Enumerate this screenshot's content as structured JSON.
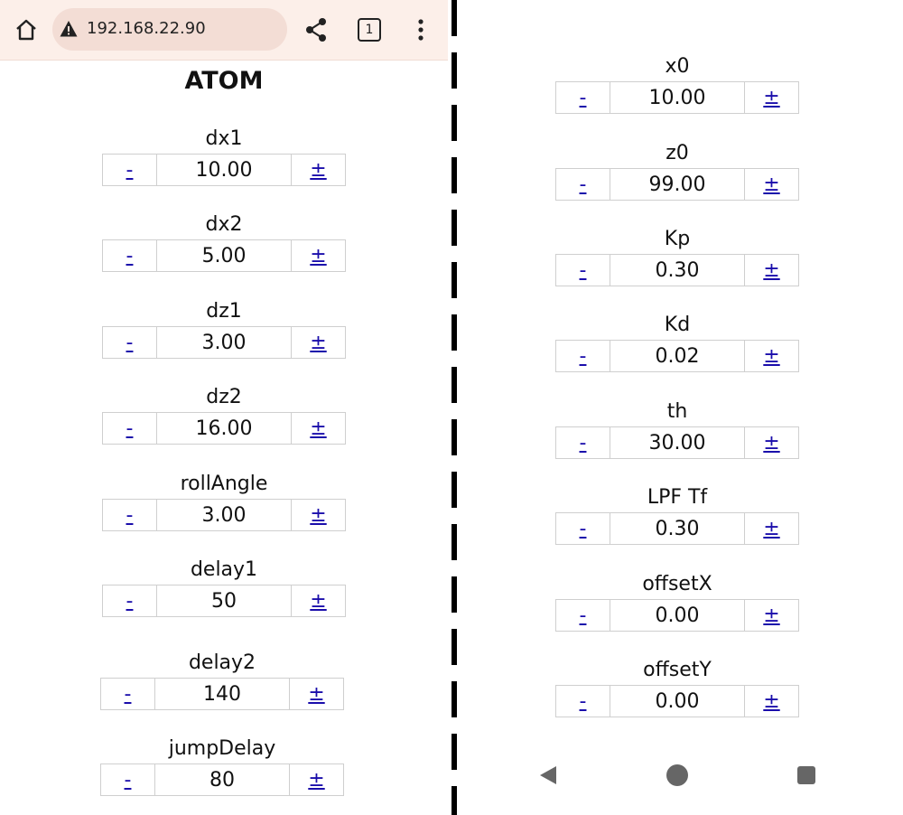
{
  "browser": {
    "url": "192.168.22.90",
    "tab_count": "1"
  },
  "page": {
    "title": "ATOM"
  },
  "stepper_labels": {
    "minus": "-",
    "plus": "±"
  },
  "left_params": [
    {
      "label": "dx1",
      "value": "10.00"
    },
    {
      "label": "dx2",
      "value": "5.00"
    },
    {
      "label": "dz1",
      "value": "3.00"
    },
    {
      "label": "dz2",
      "value": "16.00"
    },
    {
      "label": "rollAngle",
      "value": "3.00"
    },
    {
      "label": "delay1",
      "value": "50"
    },
    {
      "label": "delay2",
      "value": "140"
    },
    {
      "label": "jumpDelay",
      "value": "80"
    }
  ],
  "right_params": [
    {
      "label": "x0",
      "value": "10.00"
    },
    {
      "label": "z0",
      "value": "99.00"
    },
    {
      "label": "Kp",
      "value": "0.30"
    },
    {
      "label": "Kd",
      "value": "0.02"
    },
    {
      "label": "th",
      "value": "30.00"
    },
    {
      "label": "LPF Tf",
      "value": "0.30"
    },
    {
      "label": "offsetX",
      "value": "0.00"
    },
    {
      "label": "offsetY",
      "value": "0.00"
    }
  ]
}
